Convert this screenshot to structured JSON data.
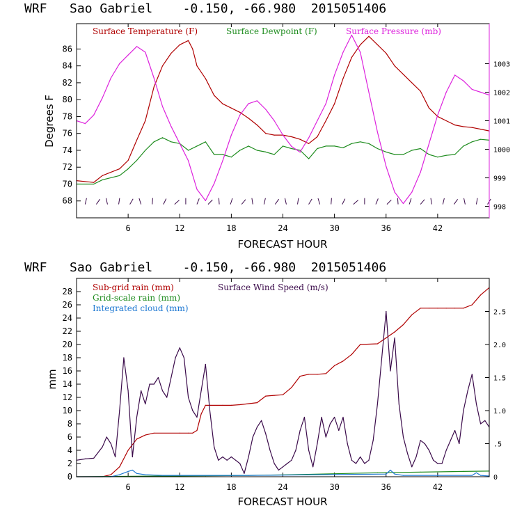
{
  "chart_data": [
    {
      "type": "line",
      "title": "WRF   Sao Gabriel    -0.150, -66.980  2015051406",
      "xlabel": "FORECAST HOUR",
      "ylabel": "Degrees F",
      "xlim": [
        0,
        48
      ],
      "x_ticks": [
        "6",
        "12",
        "18",
        "24",
        "30",
        "36",
        "42"
      ],
      "ylim": [
        66,
        89
      ],
      "y_ticks": [
        "68",
        "70",
        "72",
        "74",
        "76",
        "78",
        "80",
        "82",
        "84",
        "86"
      ],
      "y2lim": [
        997.6,
        1004.4
      ],
      "y2_ticks": [
        "998",
        "999",
        "1000",
        "1001",
        "1002",
        "1003"
      ],
      "colors": {
        "temperature": "#b00000",
        "dewpoint": "#1e8c1e",
        "pressure": "#dd22dd",
        "wind": "#3a0a4a",
        "frame_right": "#dd22dd"
      },
      "series": [
        {
          "name": "Surface Temperature (F)",
          "axis": "left",
          "x": [
            0,
            2,
            3,
            5,
            6,
            7,
            8,
            9,
            10,
            11,
            12,
            13,
            13.5,
            14,
            15,
            16,
            17,
            18,
            19,
            20,
            21,
            22,
            23,
            24,
            25,
            26,
            27,
            28,
            29,
            30,
            31,
            32,
            33,
            34,
            35,
            36,
            37,
            38,
            39,
            40,
            41,
            42,
            43,
            44,
            45,
            46,
            47,
            48
          ],
          "values": [
            70.4,
            70.2,
            71.0,
            71.8,
            72.8,
            75.2,
            77.5,
            81.5,
            84.0,
            85.5,
            86.5,
            87.0,
            86.0,
            84.0,
            82.5,
            80.5,
            79.5,
            79.0,
            78.5,
            77.8,
            77.0,
            76.0,
            75.8,
            75.8,
            75.6,
            75.3,
            74.8,
            75.6,
            77.5,
            79.5,
            82.5,
            85.0,
            86.5,
            87.5,
            86.5,
            85.5,
            84.0,
            83.0,
            82.0,
            81.0,
            79.0,
            78.0,
            77.5,
            77.0,
            76.8,
            76.7,
            76.5,
            76.3
          ]
        },
        {
          "name": "Surface Dewpoint (F)",
          "axis": "left",
          "x": [
            0,
            2,
            3,
            5,
            6,
            7,
            8,
            9,
            10,
            11,
            12,
            13,
            14,
            15,
            16,
            17,
            18,
            19,
            20,
            21,
            22,
            23,
            24,
            25,
            26,
            27,
            28,
            29,
            30,
            31,
            32,
            33,
            34,
            35,
            36,
            37,
            38,
            39,
            40,
            41,
            42,
            43,
            44,
            45,
            46,
            47,
            48
          ],
          "values": [
            70.0,
            70.0,
            70.5,
            71.0,
            71.8,
            72.8,
            74.0,
            75.0,
            75.5,
            75.0,
            74.8,
            74.0,
            74.5,
            75.0,
            73.5,
            73.5,
            73.2,
            74.0,
            74.5,
            74.0,
            73.8,
            73.5,
            74.5,
            74.2,
            74.0,
            73.0,
            74.2,
            74.5,
            74.5,
            74.3,
            74.8,
            75.0,
            74.8,
            74.2,
            73.8,
            73.5,
            73.5,
            74.0,
            74.2,
            73.5,
            73.2,
            73.4,
            73.5,
            74.5,
            75.0,
            75.3,
            75.2
          ]
        },
        {
          "name": "Surface Pressure (mb)",
          "axis": "right",
          "x": [
            0,
            1,
            2,
            3,
            4,
            5,
            6,
            7,
            8,
            9,
            10,
            11,
            12,
            13,
            14,
            15,
            16,
            17,
            18,
            19,
            20,
            21,
            22,
            23,
            24,
            25,
            26,
            27,
            28,
            29,
            30,
            31,
            32,
            33,
            34,
            35,
            36,
            37,
            38,
            39,
            40,
            41,
            42,
            43,
            44,
            45,
            46,
            47,
            48
          ],
          "values": [
            1001.0,
            1000.9,
            1001.2,
            1001.8,
            1002.5,
            1003.0,
            1003.3,
            1003.6,
            1003.4,
            1002.5,
            1001.5,
            1000.8,
            1000.2,
            999.6,
            998.6,
            998.2,
            998.8,
            999.6,
            1000.5,
            1001.2,
            1001.6,
            1001.7,
            1001.4,
            1001.0,
            1000.5,
            1000.1,
            999.9,
            1000.4,
            1001.0,
            1001.6,
            1002.6,
            1003.4,
            1004.0,
            1003.4,
            1002.0,
            1000.6,
            999.4,
            998.5,
            998.1,
            998.5,
            999.2,
            1000.2,
            1001.2,
            1002.0,
            1002.6,
            1002.4,
            1002.1,
            1002.0,
            1001.9
          ]
        }
      ],
      "wind_barbs": "row of wind barbs near the bottom of the panel"
    },
    {
      "type": "line",
      "title": "WRF   Sao Gabriel    -0.150, -66.980  2015051406",
      "xlabel": "FORECAST HOUR",
      "ylabel": "mm",
      "xlim": [
        0,
        48
      ],
      "x_ticks": [
        "6",
        "12",
        "18",
        "24",
        "30",
        "36",
        "42"
      ],
      "ylim": [
        0,
        30
      ],
      "y_ticks": [
        "0",
        "2",
        "4",
        "6",
        "8",
        "10",
        "12",
        "14",
        "16",
        "18",
        "20",
        "22",
        "24",
        "26",
        "28"
      ],
      "y2lim": [
        0,
        3.0
      ],
      "y2_ticks": [
        "0",
        ".5",
        "1.0",
        "1.5",
        "2.0",
        "2.5"
      ],
      "colors": {
        "subgrid": "#b00000",
        "gridscale": "#1e8c1e",
        "cloud": "#1e78d2",
        "wind": "#3a0a4a"
      },
      "series": [
        {
          "name": "Sub-grid rain (mm)",
          "axis": "left",
          "x": [
            0,
            3,
            4,
            5,
            6,
            7,
            8,
            9,
            12,
            13,
            13.5,
            14,
            14.5,
            15,
            17,
            18,
            19,
            21,
            22,
            23,
            24,
            25,
            26,
            27,
            28,
            29,
            30,
            31,
            32,
            33,
            35,
            36,
            37,
            38,
            39,
            40,
            41,
            42,
            43,
            44,
            45,
            46,
            47,
            48
          ],
          "values": [
            0,
            0,
            0.3,
            1.5,
            4.0,
            5.7,
            6.3,
            6.6,
            6.6,
            6.6,
            6.6,
            7.0,
            9.5,
            10.8,
            10.8,
            10.8,
            10.9,
            11.2,
            12.2,
            12.3,
            12.4,
            13.5,
            15.2,
            15.5,
            15.5,
            15.6,
            16.8,
            17.5,
            18.5,
            20.0,
            20.1,
            21.0,
            21.9,
            23.0,
            24.5,
            25.5,
            25.5,
            25.5,
            25.5,
            25.5,
            25.5,
            26.0,
            27.5,
            28.6
          ]
        },
        {
          "name": "Grid-scale rain (mm)",
          "axis": "left",
          "x": [
            0,
            5,
            10,
            15,
            20,
            25,
            30,
            35,
            40,
            45,
            48
          ],
          "values": [
            0,
            0.05,
            0.1,
            0.15,
            0.2,
            0.3,
            0.45,
            0.6,
            0.7,
            0.8,
            0.85
          ]
        },
        {
          "name": "Integrated cloud (mm)",
          "axis": "left",
          "x": [
            0,
            4,
            5,
            6,
            6.5,
            7,
            8,
            10,
            20,
            36,
            36.5,
            37,
            38,
            46,
            46.5,
            47,
            48
          ],
          "values": [
            0,
            0,
            0.3,
            0.8,
            1.0,
            0.5,
            0.3,
            0.2,
            0.2,
            0.4,
            1.0,
            0.4,
            0.2,
            0.2,
            0.6,
            0.2,
            0.1
          ]
        },
        {
          "name": "Surface Wind Speed (m/s)",
          "axis": "right",
          "x": [
            0,
            1,
            2,
            3,
            3.5,
            4,
            4.5,
            5,
            5.5,
            6,
            6.5,
            7,
            7.5,
            8,
            8.5,
            9,
            9.5,
            10,
            10.5,
            11,
            11.5,
            12,
            12.5,
            13,
            13.5,
            14,
            14.5,
            15,
            15.5,
            16,
            16.5,
            17,
            17.5,
            18,
            18.5,
            19,
            19.5,
            20,
            20.5,
            21,
            21.5,
            22,
            22.5,
            23,
            23.5,
            24,
            24.5,
            25,
            25.5,
            26,
            26.5,
            27,
            27.5,
            28,
            28.5,
            29,
            29.5,
            30,
            30.5,
            31,
            31.5,
            32,
            32.5,
            33,
            33.5,
            34,
            34.5,
            35,
            35.5,
            36,
            36.5,
            37,
            37.5,
            38,
            38.5,
            39,
            39.5,
            40,
            40.5,
            41,
            41.5,
            42,
            42.5,
            43,
            43.5,
            44,
            44.5,
            45,
            45.5,
            46,
            46.5,
            47,
            47.5,
            48
          ],
          "values": [
            0.25,
            0.27,
            0.28,
            0.45,
            0.6,
            0.5,
            0.3,
            1.0,
            1.8,
            1.3,
            0.3,
            0.9,
            1.3,
            1.1,
            1.4,
            1.4,
            1.5,
            1.3,
            1.2,
            1.5,
            1.8,
            1.95,
            1.8,
            1.2,
            1.0,
            0.9,
            1.3,
            1.7,
            1.0,
            0.45,
            0.25,
            0.3,
            0.25,
            0.3,
            0.25,
            0.2,
            0.05,
            0.3,
            0.6,
            0.75,
            0.85,
            0.65,
            0.4,
            0.2,
            0.1,
            0.15,
            0.2,
            0.25,
            0.4,
            0.7,
            0.9,
            0.4,
            0.15,
            0.5,
            0.9,
            0.6,
            0.8,
            0.9,
            0.7,
            0.9,
            0.5,
            0.25,
            0.2,
            0.3,
            0.2,
            0.25,
            0.55,
            1.1,
            1.8,
            2.5,
            1.6,
            2.1,
            1.1,
            0.6,
            0.35,
            0.15,
            0.3,
            0.55,
            0.5,
            0.4,
            0.25,
            0.2,
            0.2,
            0.4,
            0.55,
            0.7,
            0.5,
            1.0,
            1.3,
            1.55,
            1.1,
            0.8,
            0.85,
            0.75
          ]
        }
      ]
    }
  ]
}
